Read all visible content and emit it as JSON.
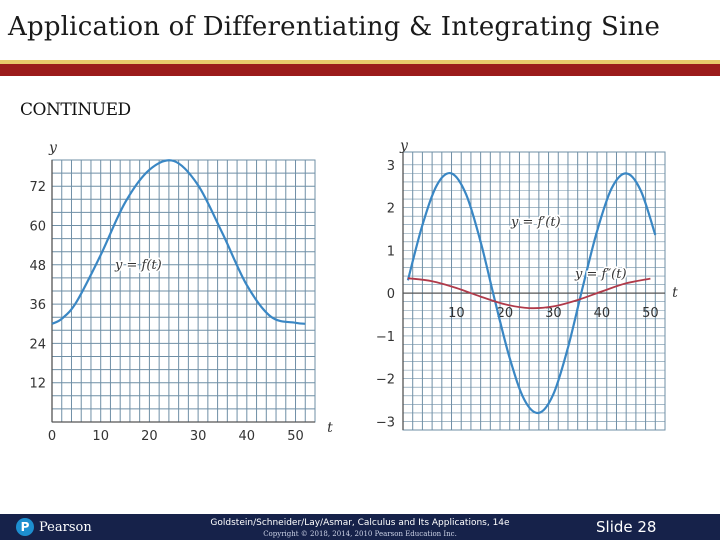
{
  "slide": {
    "title": "Application of Differentiating & Integrating Sine",
    "subtitle": "CONTINUED"
  },
  "footer": {
    "logo_text": "Pearson",
    "logo_glyph": "P",
    "citation": "Goldstein/Schneider/Lay/Asmar, Calculus and Its Applications, 14e",
    "copyright": "Copyright © 2018, 2014, 2010 Pearson Education Inc.",
    "slide_number": "Slide 28"
  },
  "colors": {
    "accent_red": "#9b1b1b",
    "accent_yellow": "#e8c86a",
    "footer_bg": "#16224a",
    "grid": "#6f8fa6",
    "curve_blue": "#3a87c4",
    "curve_red": "#b03a4a"
  },
  "chart_data": [
    {
      "type": "line",
      "title": "",
      "xlabel": "t",
      "ylabel": "y",
      "xlim": [
        0,
        54
      ],
      "ylim": [
        0,
        80
      ],
      "x_ticks": [
        "0",
        "10",
        "20",
        "30",
        "40",
        "50"
      ],
      "y_ticks": [
        "12",
        "24",
        "36",
        "48",
        "60",
        "72"
      ],
      "grid": true,
      "series": [
        {
          "name": "y = f(t)",
          "x": [
            0,
            2,
            5,
            10,
            15,
            20,
            25,
            30,
            35,
            40,
            45,
            50,
            52
          ],
          "y": [
            30,
            31.5,
            36.6,
            51,
            67,
            77,
            79.7,
            72.3,
            57.6,
            41.8,
            32.1,
            30.3,
            30
          ]
        }
      ]
    },
    {
      "type": "line",
      "title": "",
      "xlabel": "t",
      "ylabel": "y",
      "xlim": [
        -1,
        53
      ],
      "ylim": [
        -3.2,
        3.3
      ],
      "x_ticks": [
        "10",
        "20",
        "30",
        "40",
        "50"
      ],
      "y_ticks": [
        "3",
        "2",
        "1",
        "0",
        "−1",
        "−2",
        "−3"
      ],
      "grid": true,
      "series": [
        {
          "name": "y = f′(t)",
          "x": [
            0,
            3,
            6,
            9,
            12,
            15,
            18,
            21,
            24,
            27,
            30,
            33,
            36,
            39,
            42,
            45,
            48,
            51
          ],
          "y": [
            0.3,
            1.59,
            2.53,
            2.8,
            2.31,
            1.2,
            -0.2,
            -1.52,
            -2.49,
            -2.8,
            -2.36,
            -1.27,
            0.12,
            1.45,
            2.45,
            2.8,
            2.4,
            1.36
          ]
        },
        {
          "name": "y = f″(t)",
          "x": [
            0,
            5,
            10,
            15,
            20,
            25,
            30,
            35,
            40,
            45,
            50
          ],
          "y": [
            0.35,
            0.28,
            0.12,
            -0.08,
            -0.26,
            -0.35,
            -0.31,
            -0.16,
            0.04,
            0.23,
            0.34
          ]
        }
      ]
    }
  ]
}
